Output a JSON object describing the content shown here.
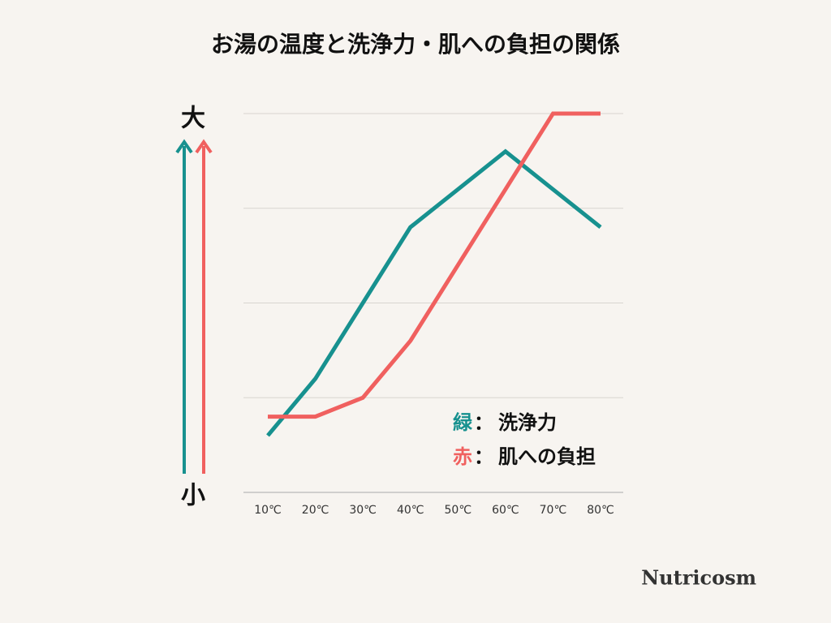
{
  "chart_data": {
    "type": "line",
    "title": "お湯の温度と洗浄力・肌への負担の関係",
    "categories": [
      "10℃",
      "20℃",
      "30℃",
      "40℃",
      "50℃",
      "60℃",
      "70℃",
      "80℃"
    ],
    "series": [
      {
        "name": "洗浄力",
        "color_label": "緑",
        "color": "#17918f",
        "values": [
          0.6,
          1.2,
          2.0,
          2.8,
          3.2,
          3.6,
          3.2,
          2.8
        ]
      },
      {
        "name": "肌への負担",
        "color_label": "赤",
        "color": "#f0605f",
        "values": [
          0.8,
          0.8,
          1.0,
          1.6,
          2.4,
          3.2,
          4.0,
          4.0
        ]
      }
    ],
    "legend_separator": "：",
    "y_high_label": "大",
    "y_low_label": "小",
    "ylim": [
      0,
      4
    ],
    "yticks": [
      0,
      1,
      2,
      3,
      4
    ],
    "grid": true,
    "brand": "Nutricosm"
  }
}
